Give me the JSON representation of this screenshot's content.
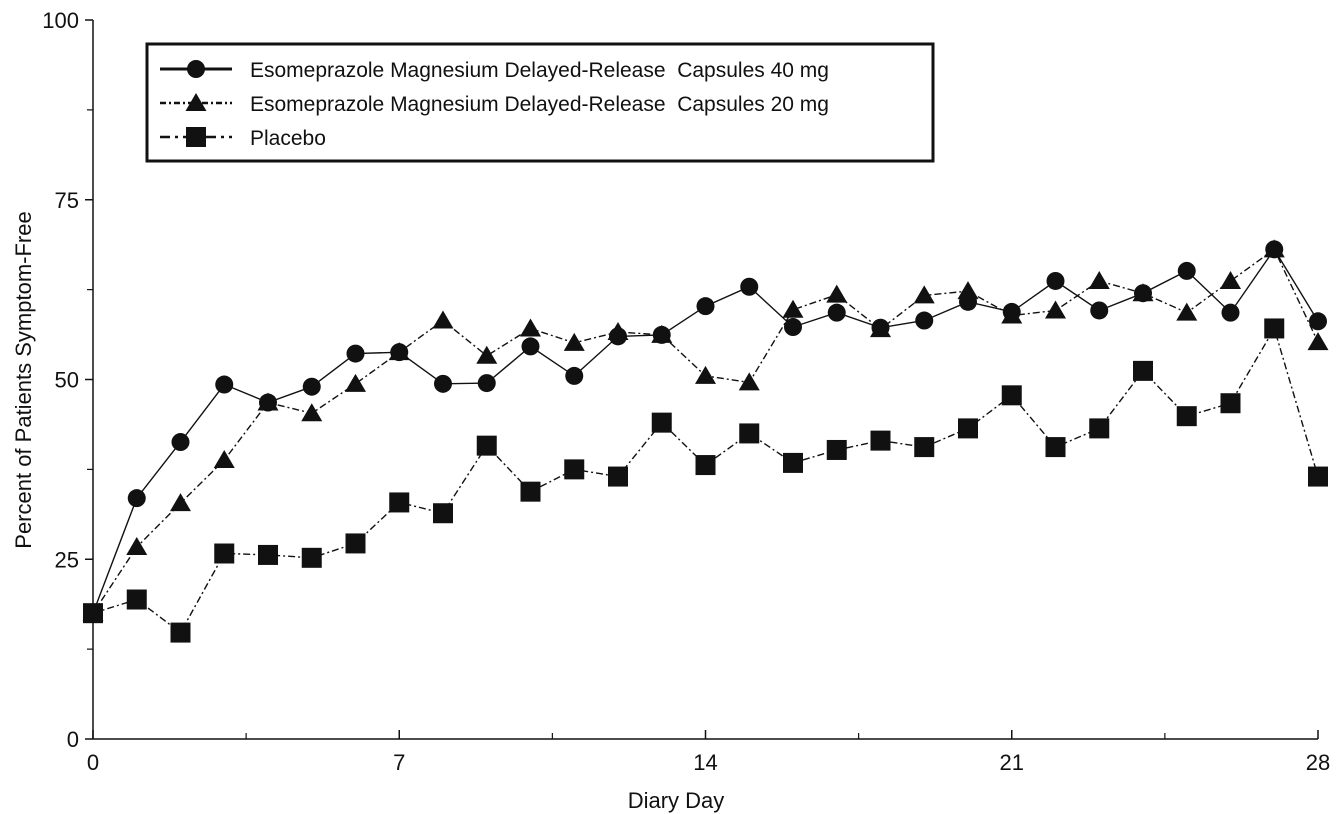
{
  "chart_data": {
    "type": "line",
    "title": "",
    "xlabel": "Diary Day",
    "ylabel": "Percent of Patients Symptom-Free",
    "xlim": [
      0,
      28
    ],
    "ylim": [
      0,
      100
    ],
    "x_ticks": [
      0,
      7,
      14,
      21,
      28
    ],
    "y_ticks": [
      0,
      25,
      50,
      75,
      100
    ],
    "x_tick_labels": [
      "0",
      "7",
      "14",
      "21",
      "28"
    ],
    "y_tick_labels": [
      "0",
      "25",
      "50",
      "75",
      "100"
    ],
    "grid": false,
    "legend_position": "top-left",
    "x": [
      0,
      1,
      2,
      3,
      4,
      5,
      6,
      7,
      8,
      9,
      10,
      11,
      12,
      13,
      14,
      15,
      16,
      17,
      18,
      19,
      20,
      21,
      22,
      23,
      24,
      25,
      26,
      27,
      28
    ],
    "series": [
      {
        "name": "Esomeprazole Magnesium Delayed-Release  Capsules 40 mg",
        "marker": "circle",
        "line_style": "solid",
        "values": [
          17.5,
          33.5,
          41.3,
          49.3,
          46.8,
          49.0,
          53.6,
          53.8,
          49.4,
          49.5,
          54.6,
          50.5,
          56.0,
          56.2,
          60.2,
          62.9,
          57.3,
          59.3,
          57.2,
          58.2,
          60.8,
          59.4,
          63.7,
          59.6,
          62.0,
          65.1,
          59.3,
          68.1,
          58.1
        ]
      },
      {
        "name": "Esomeprazole Magnesium Delayed-Release  Capsules 20 mg",
        "marker": "triangle",
        "line_style": "dash-dot",
        "values": [
          17.5,
          26.7,
          32.8,
          38.8,
          46.8,
          45.3,
          49.4,
          53.8,
          58.2,
          53.3,
          57.1,
          55.1,
          56.6,
          56.2,
          50.5,
          49.6,
          59.7,
          61.8,
          57.0,
          61.7,
          62.3,
          58.9,
          59.6,
          63.7,
          62.0,
          59.3,
          63.7,
          68.1,
          55.2
        ]
      },
      {
        "name": "Placebo",
        "marker": "square",
        "line_style": "dash-dot",
        "values": [
          17.5,
          19.4,
          14.8,
          25.8,
          25.6,
          25.2,
          27.2,
          32.9,
          31.4,
          40.8,
          34.4,
          37.5,
          36.5,
          44.0,
          38.1,
          42.5,
          38.4,
          40.2,
          41.5,
          40.6,
          43.2,
          47.8,
          40.6,
          43.2,
          51.2,
          44.9,
          46.7,
          57.1,
          36.5
        ]
      }
    ],
    "colors": {
      "ink": "#111111",
      "background": "#ffffff"
    }
  }
}
